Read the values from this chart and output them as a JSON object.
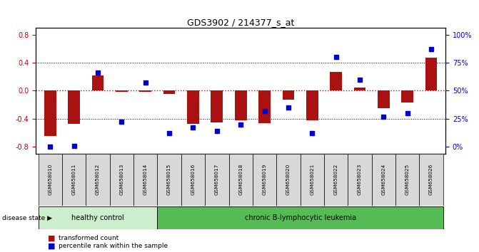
{
  "title": "GDS3902 / 214377_s_at",
  "samples": [
    "GSM658010",
    "GSM658011",
    "GSM658012",
    "GSM658013",
    "GSM658014",
    "GSM658015",
    "GSM658016",
    "GSM658017",
    "GSM658018",
    "GSM658019",
    "GSM658020",
    "GSM658021",
    "GSM658022",
    "GSM658023",
    "GSM658024",
    "GSM658025",
    "GSM658026"
  ],
  "red_bars": [
    -0.65,
    -0.47,
    0.22,
    -0.02,
    -0.02,
    -0.05,
    -0.47,
    -0.45,
    -0.42,
    -0.46,
    -0.13,
    -0.42,
    0.27,
    0.05,
    -0.25,
    -0.17,
    0.47
  ],
  "blue_dots_pct": [
    0,
    1,
    66,
    22,
    57,
    12,
    17,
    14,
    20,
    32,
    35,
    12,
    80,
    60,
    27,
    30,
    87
  ],
  "ylim": [
    -0.9,
    0.9
  ],
  "yticks_left": [
    -0.8,
    -0.4,
    0.0,
    0.4,
    0.8
  ],
  "bar_color": "#AA1111",
  "dot_color": "#0000CC",
  "zero_line_color": "#CC0000",
  "grid_color": "#000000",
  "healthy_control_range": [
    0,
    4
  ],
  "leukemia_range": [
    5,
    16
  ],
  "healthy_label": "healthy control",
  "leukemia_label": "chronic B-lymphocytic leukemia",
  "healthy_color": "#CCEECC",
  "leukemia_color": "#55BB55",
  "legend_red": "transformed count",
  "legend_blue": "percentile rank within the sample",
  "disease_state_label": "disease state",
  "background_color": "#FFFFFF",
  "plot_bg_color": "#FFFFFF"
}
